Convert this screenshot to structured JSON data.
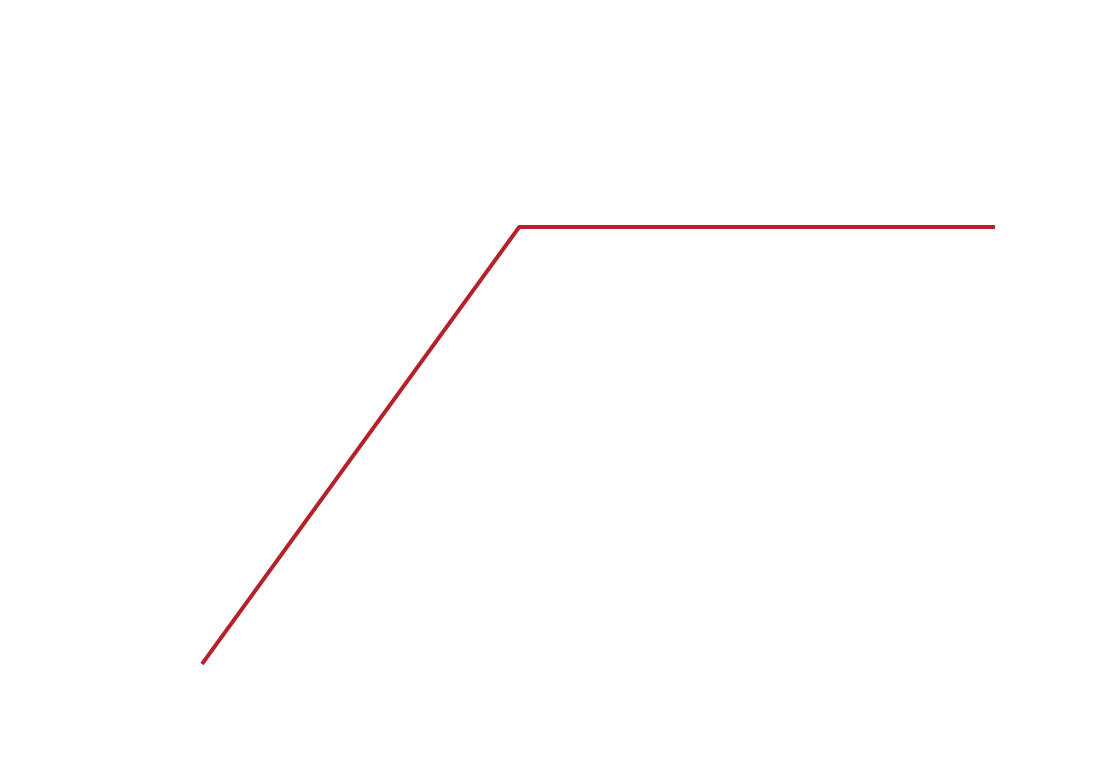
{
  "chart_data": {
    "type": "line",
    "title": "",
    "xlabel": "",
    "ylabel": "",
    "grid": false,
    "legend": "none",
    "xlim": [
      0,
      100
    ],
    "ylim": [
      0,
      100
    ],
    "series": [
      {
        "color": "#b5202a",
        "points": [
          {
            "x": 0,
            "y": 0
          },
          {
            "x": 40,
            "y": 100
          },
          {
            "x": 100,
            "y": 100
          }
        ]
      }
    ]
  }
}
